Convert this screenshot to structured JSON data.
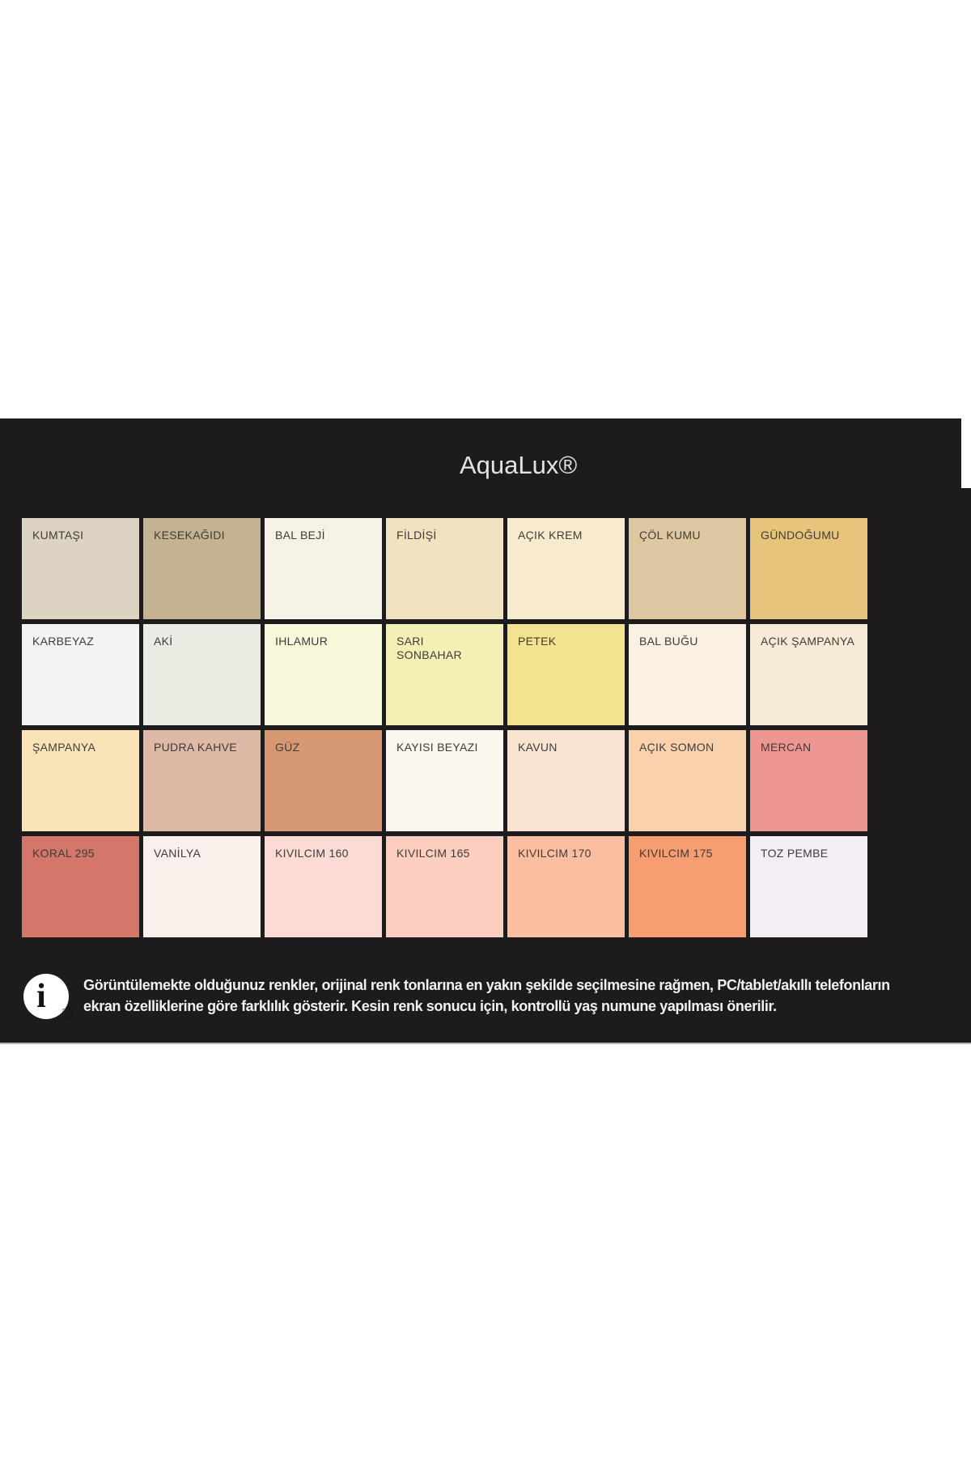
{
  "chart_data": {
    "type": "table",
    "title": "AquaLux®",
    "rows": 4,
    "cols": 7,
    "swatches": [
      {
        "name": "KUMTAŞI",
        "color": "#ddd3c3"
      },
      {
        "name": "KESEKAĞIDI",
        "color": "#c4b290"
      },
      {
        "name": "BAL BEJİ",
        "color": "#f4f3e6"
      },
      {
        "name": "FİLDİŞİ",
        "color": "#f1e2c0"
      },
      {
        "name": "AÇIK KREM",
        "color": "#f8ebcd"
      },
      {
        "name": "ÇÖL KUMU",
        "color": "#dfc7a1"
      },
      {
        "name": "GÜNDOĞUMU",
        "color": "#e6c47b"
      },
      {
        "name": "KARBEYAZ",
        "color": "#f3f3f2"
      },
      {
        "name": "AKİ",
        "color": "#ebebe4"
      },
      {
        "name": "IHLAMUR",
        "color": "#f9f7da"
      },
      {
        "name": "SARI\nSONBAHAR",
        "color": "#f4efb5"
      },
      {
        "name": "PETEK",
        "color": "#f3e290"
      },
      {
        "name": "BAL BUĞU",
        "color": "#faf1e3"
      },
      {
        "name": "AÇIK ŞAMPANYA",
        "color": "#f7ebd7"
      },
      {
        "name": "ŞAMPANYA",
        "color": "#fbe3b8"
      },
      {
        "name": "PUDRA KAHVE",
        "color": "#deb9a6"
      },
      {
        "name": "GÜZ",
        "color": "#d79974"
      },
      {
        "name": "KAYISI BEYAZI",
        "color": "#fbf6ee"
      },
      {
        "name": "KAVUN",
        "color": "#f9e3d1"
      },
      {
        "name": "AÇIK SOMON",
        "color": "#f9d1ad"
      },
      {
        "name": "MERCAN",
        "color": "#ee9792"
      },
      {
        "name": "KORAL 295",
        "color": "#d4766a"
      },
      {
        "name": "VANİLYA",
        "color": "#f9f0eb"
      },
      {
        "name": "KIVILCIM 160",
        "color": "#fbdbd4"
      },
      {
        "name": "KIVILCIM 165",
        "color": "#fbcebf"
      },
      {
        "name": "KIVILCIM 170",
        "color": "#fbbea0"
      },
      {
        "name": "KIVILCIM 175",
        "color": "#f79d72"
      },
      {
        "name": "TOZ PEMBE",
        "color": "#f3edf4"
      }
    ]
  },
  "footer": {
    "icon": "info-icon",
    "icon_glyph": "i",
    "hand_glyph": "☝",
    "line1": "Görüntülemekte olduğunuz renkler, orijinal renk tonlarına en yakın şekilde seçilmesine rağmen, PC/tablet/akıllı telefonların",
    "line2": "ekran özelliklerine göre farklılık gösterir. Kesin renk sonucu için, kontrollü yaş numune yapılması önerilir."
  },
  "theme": {
    "page_bg": "#ffffff",
    "panel_bg": "#1e1b1c",
    "title_color": "#e4e3e1",
    "label_color": "#3e3b38",
    "footer_text_color": "#f2f1f0",
    "divider_color": "#b3b1b2"
  }
}
